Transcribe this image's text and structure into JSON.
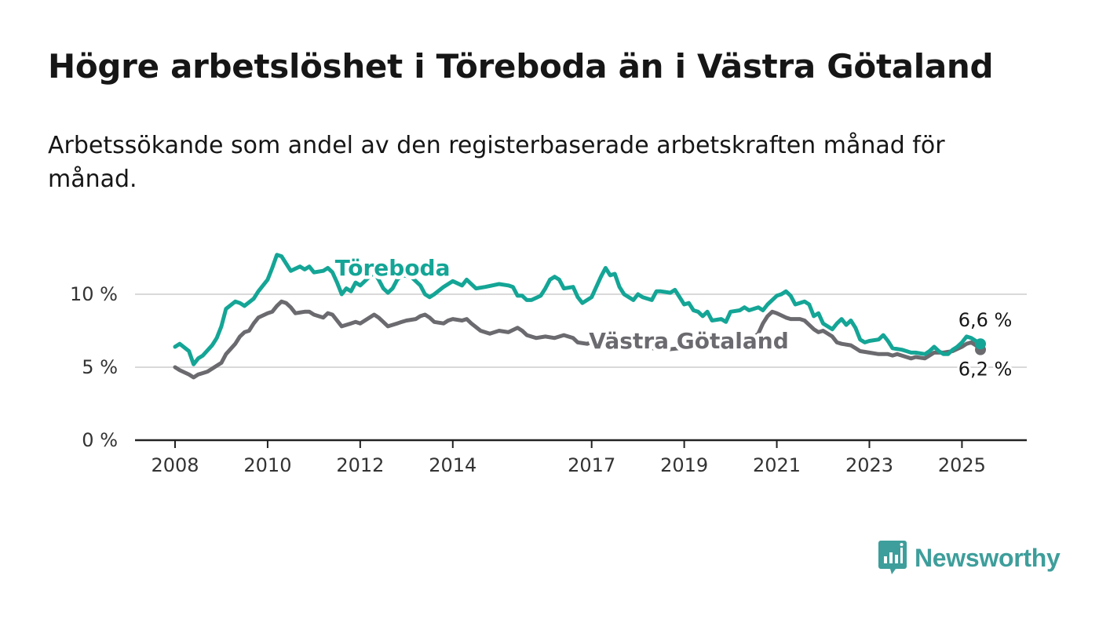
{
  "title": "Högre arbetslöshet i Töreboda än i Västra Götaland",
  "subtitle": "Arbetssökande som andel av den registerbaserade arbetskraften månad för månad.",
  "brand": {
    "name": "Newsworthy",
    "color": "#3e9e9b",
    "icon": "newsworthy-logo-icon"
  },
  "chart_data": {
    "type": "line",
    "xlim": [
      2007.3,
      2026.4
    ],
    "ylim": [
      0,
      13
    ],
    "yticks": [
      0,
      5,
      10
    ],
    "ytick_labels": [
      "0 %",
      "5 %",
      "10 %"
    ],
    "xticks": [
      2008,
      2010,
      2012,
      2014,
      2017,
      2019,
      2021,
      2023,
      2025
    ],
    "xtick_labels": [
      "2008",
      "2010",
      "2012",
      "2014",
      "2017",
      "2019",
      "2021",
      "2023",
      "2025"
    ],
    "grid": true,
    "series": [
      {
        "name": "Töreboda",
        "color": "#14a596",
        "label_at": [
          2012.7,
          11.3
        ],
        "end_label": "6,6 %",
        "end_label_position": "above",
        "points": [
          [
            2008.0,
            6.4
          ],
          [
            2008.1,
            6.6
          ],
          [
            2008.3,
            6.1
          ],
          [
            2008.4,
            5.2
          ],
          [
            2008.5,
            5.6
          ],
          [
            2008.6,
            5.8
          ],
          [
            2008.8,
            6.5
          ],
          [
            2008.9,
            7.0
          ],
          [
            2009.0,
            7.8
          ],
          [
            2009.1,
            9.0
          ],
          [
            2009.3,
            9.5
          ],
          [
            2009.4,
            9.4
          ],
          [
            2009.5,
            9.2
          ],
          [
            2009.7,
            9.7
          ],
          [
            2009.8,
            10.2
          ],
          [
            2010.0,
            11.0
          ],
          [
            2010.1,
            11.8
          ],
          [
            2010.2,
            12.7
          ],
          [
            2010.3,
            12.6
          ],
          [
            2010.4,
            12.1
          ],
          [
            2010.5,
            11.6
          ],
          [
            2010.7,
            11.9
          ],
          [
            2010.8,
            11.7
          ],
          [
            2010.9,
            11.9
          ],
          [
            2011.0,
            11.5
          ],
          [
            2011.2,
            11.6
          ],
          [
            2011.3,
            11.8
          ],
          [
            2011.4,
            11.5
          ],
          [
            2011.5,
            10.8
          ],
          [
            2011.6,
            10.0
          ],
          [
            2011.7,
            10.4
          ],
          [
            2011.8,
            10.2
          ],
          [
            2011.9,
            10.8
          ],
          [
            2012.0,
            10.6
          ],
          [
            2012.2,
            11.2
          ],
          [
            2012.3,
            11.5
          ],
          [
            2012.4,
            11.0
          ],
          [
            2012.5,
            10.4
          ],
          [
            2012.6,
            10.1
          ],
          [
            2012.7,
            10.4
          ],
          [
            2012.8,
            11.0
          ],
          [
            2012.9,
            11.3
          ],
          [
            2013.1,
            11.2
          ],
          [
            2013.3,
            10.6
          ],
          [
            2013.4,
            10.0
          ],
          [
            2013.5,
            9.8
          ],
          [
            2013.6,
            10.0
          ],
          [
            2013.8,
            10.5
          ],
          [
            2014.0,
            10.9
          ],
          [
            2014.2,
            10.6
          ],
          [
            2014.3,
            11.0
          ],
          [
            2014.5,
            10.4
          ],
          [
            2014.7,
            10.5
          ],
          [
            2015.0,
            10.7
          ],
          [
            2015.2,
            10.6
          ],
          [
            2015.3,
            10.5
          ],
          [
            2015.4,
            9.9
          ],
          [
            2015.5,
            9.9
          ],
          [
            2015.6,
            9.6
          ],
          [
            2015.7,
            9.6
          ],
          [
            2015.9,
            9.9
          ],
          [
            2016.0,
            10.4
          ],
          [
            2016.1,
            11.0
          ],
          [
            2016.2,
            11.2
          ],
          [
            2016.3,
            11.0
          ],
          [
            2016.4,
            10.4
          ],
          [
            2016.6,
            10.5
          ],
          [
            2016.7,
            9.8
          ],
          [
            2016.8,
            9.4
          ],
          [
            2017.0,
            9.8
          ],
          [
            2017.1,
            10.5
          ],
          [
            2017.2,
            11.2
          ],
          [
            2017.3,
            11.8
          ],
          [
            2017.4,
            11.3
          ],
          [
            2017.5,
            11.4
          ],
          [
            2017.6,
            10.5
          ],
          [
            2017.7,
            10.0
          ],
          [
            2017.9,
            9.6
          ],
          [
            2018.0,
            10.0
          ],
          [
            2018.1,
            9.8
          ],
          [
            2018.3,
            9.6
          ],
          [
            2018.4,
            10.2
          ],
          [
            2018.5,
            10.2
          ],
          [
            2018.7,
            10.1
          ],
          [
            2018.8,
            10.3
          ],
          [
            2019.0,
            9.3
          ],
          [
            2019.1,
            9.4
          ],
          [
            2019.2,
            8.9
          ],
          [
            2019.3,
            8.8
          ],
          [
            2019.4,
            8.5
          ],
          [
            2019.5,
            8.8
          ],
          [
            2019.6,
            8.2
          ],
          [
            2019.8,
            8.3
          ],
          [
            2019.9,
            8.1
          ],
          [
            2020.0,
            8.8
          ],
          [
            2020.2,
            8.9
          ],
          [
            2020.3,
            9.1
          ],
          [
            2020.4,
            8.9
          ],
          [
            2020.6,
            9.1
          ],
          [
            2020.7,
            8.9
          ],
          [
            2020.8,
            9.3
          ],
          [
            2021.0,
            9.9
          ],
          [
            2021.1,
            10.0
          ],
          [
            2021.2,
            10.2
          ],
          [
            2021.3,
            9.9
          ],
          [
            2021.4,
            9.3
          ],
          [
            2021.6,
            9.5
          ],
          [
            2021.7,
            9.3
          ],
          [
            2021.8,
            8.5
          ],
          [
            2021.9,
            8.7
          ],
          [
            2022.0,
            8.0
          ],
          [
            2022.2,
            7.6
          ],
          [
            2022.3,
            8.0
          ],
          [
            2022.4,
            8.3
          ],
          [
            2022.5,
            7.9
          ],
          [
            2022.6,
            8.2
          ],
          [
            2022.7,
            7.7
          ],
          [
            2022.8,
            6.9
          ],
          [
            2022.9,
            6.7
          ],
          [
            2023.0,
            6.8
          ],
          [
            2023.2,
            6.9
          ],
          [
            2023.3,
            7.2
          ],
          [
            2023.4,
            6.8
          ],
          [
            2023.5,
            6.3
          ],
          [
            2023.7,
            6.2
          ],
          [
            2023.8,
            6.1
          ],
          [
            2023.9,
            6.0
          ],
          [
            2024.0,
            6.0
          ],
          [
            2024.2,
            5.9
          ],
          [
            2024.3,
            6.1
          ],
          [
            2024.4,
            6.4
          ],
          [
            2024.5,
            6.1
          ],
          [
            2024.6,
            5.9
          ],
          [
            2024.7,
            5.9
          ],
          [
            2024.8,
            6.2
          ],
          [
            2024.9,
            6.4
          ],
          [
            2025.0,
            6.7
          ],
          [
            2025.1,
            7.1
          ],
          [
            2025.2,
            7.0
          ],
          [
            2025.3,
            6.8
          ],
          [
            2025.4,
            6.6
          ]
        ]
      },
      {
        "name": "Västra Götaland",
        "color": "#6a6a6f",
        "label_at": [
          2019.1,
          6.3
        ],
        "end_label": "6,2 %",
        "end_label_position": "below",
        "points": [
          [
            2008.0,
            5.0
          ],
          [
            2008.1,
            4.8
          ],
          [
            2008.3,
            4.5
          ],
          [
            2008.4,
            4.3
          ],
          [
            2008.5,
            4.5
          ],
          [
            2008.7,
            4.7
          ],
          [
            2008.8,
            4.9
          ],
          [
            2009.0,
            5.3
          ],
          [
            2009.1,
            5.9
          ],
          [
            2009.3,
            6.6
          ],
          [
            2009.4,
            7.1
          ],
          [
            2009.5,
            7.4
          ],
          [
            2009.6,
            7.5
          ],
          [
            2009.7,
            8.0
          ],
          [
            2009.8,
            8.4
          ],
          [
            2010.0,
            8.7
          ],
          [
            2010.1,
            8.8
          ],
          [
            2010.2,
            9.2
          ],
          [
            2010.3,
            9.5
          ],
          [
            2010.4,
            9.4
          ],
          [
            2010.5,
            9.1
          ],
          [
            2010.6,
            8.7
          ],
          [
            2010.8,
            8.8
          ],
          [
            2010.9,
            8.8
          ],
          [
            2011.0,
            8.6
          ],
          [
            2011.2,
            8.4
          ],
          [
            2011.3,
            8.7
          ],
          [
            2011.4,
            8.6
          ],
          [
            2011.5,
            8.2
          ],
          [
            2011.6,
            7.8
          ],
          [
            2011.8,
            8.0
          ],
          [
            2011.9,
            8.1
          ],
          [
            2012.0,
            8.0
          ],
          [
            2012.2,
            8.4
          ],
          [
            2012.3,
            8.6
          ],
          [
            2012.4,
            8.4
          ],
          [
            2012.5,
            8.1
          ],
          [
            2012.6,
            7.8
          ],
          [
            2012.8,
            8.0
          ],
          [
            2012.9,
            8.1
          ],
          [
            2013.0,
            8.2
          ],
          [
            2013.2,
            8.3
          ],
          [
            2013.3,
            8.5
          ],
          [
            2013.4,
            8.6
          ],
          [
            2013.5,
            8.4
          ],
          [
            2013.6,
            8.1
          ],
          [
            2013.8,
            8.0
          ],
          [
            2013.9,
            8.2
          ],
          [
            2014.0,
            8.3
          ],
          [
            2014.2,
            8.2
          ],
          [
            2014.3,
            8.3
          ],
          [
            2014.4,
            8.0
          ],
          [
            2014.6,
            7.5
          ],
          [
            2014.8,
            7.3
          ],
          [
            2015.0,
            7.5
          ],
          [
            2015.2,
            7.4
          ],
          [
            2015.4,
            7.7
          ],
          [
            2015.5,
            7.5
          ],
          [
            2015.6,
            7.2
          ],
          [
            2015.8,
            7.0
          ],
          [
            2016.0,
            7.1
          ],
          [
            2016.2,
            7.0
          ],
          [
            2016.4,
            7.2
          ],
          [
            2016.6,
            7.0
          ],
          [
            2016.7,
            6.7
          ],
          [
            2016.9,
            6.6
          ],
          [
            2017.0,
            6.7
          ],
          [
            2017.2,
            6.8
          ],
          [
            2017.4,
            6.9
          ],
          [
            2017.6,
            6.8
          ],
          [
            2017.7,
            6.6
          ],
          [
            2017.9,
            6.4
          ],
          [
            2018.0,
            6.3
          ],
          [
            2018.3,
            6.3
          ],
          [
            2018.6,
            6.2
          ],
          [
            2018.9,
            6.3
          ],
          [
            2019.2,
            6.4
          ],
          [
            2019.5,
            6.5
          ],
          [
            2019.8,
            6.3
          ],
          [
            2020.1,
            6.5
          ],
          [
            2020.4,
            6.8
          ],
          [
            2020.6,
            7.3
          ],
          [
            2020.7,
            8.0
          ],
          [
            2020.8,
            8.5
          ],
          [
            2020.9,
            8.8
          ],
          [
            2021.0,
            8.7
          ],
          [
            2021.2,
            8.4
          ],
          [
            2021.3,
            8.3
          ],
          [
            2021.5,
            8.3
          ],
          [
            2021.6,
            8.2
          ],
          [
            2021.7,
            7.9
          ],
          [
            2021.8,
            7.6
          ],
          [
            2021.9,
            7.4
          ],
          [
            2022.0,
            7.5
          ],
          [
            2022.2,
            7.1
          ],
          [
            2022.3,
            6.7
          ],
          [
            2022.4,
            6.6
          ],
          [
            2022.6,
            6.5
          ],
          [
            2022.7,
            6.3
          ],
          [
            2022.8,
            6.1
          ],
          [
            2023.0,
            6.0
          ],
          [
            2023.2,
            5.9
          ],
          [
            2023.4,
            5.9
          ],
          [
            2023.5,
            5.8
          ],
          [
            2023.6,
            5.9
          ],
          [
            2023.8,
            5.7
          ],
          [
            2023.9,
            5.6
          ],
          [
            2024.0,
            5.7
          ],
          [
            2024.2,
            5.6
          ],
          [
            2024.4,
            6.0
          ],
          [
            2024.6,
            6.0
          ],
          [
            2024.8,
            6.1
          ],
          [
            2025.0,
            6.4
          ],
          [
            2025.1,
            6.6
          ],
          [
            2025.2,
            6.7
          ],
          [
            2025.3,
            6.5
          ],
          [
            2025.4,
            6.2
          ]
        ]
      }
    ]
  }
}
